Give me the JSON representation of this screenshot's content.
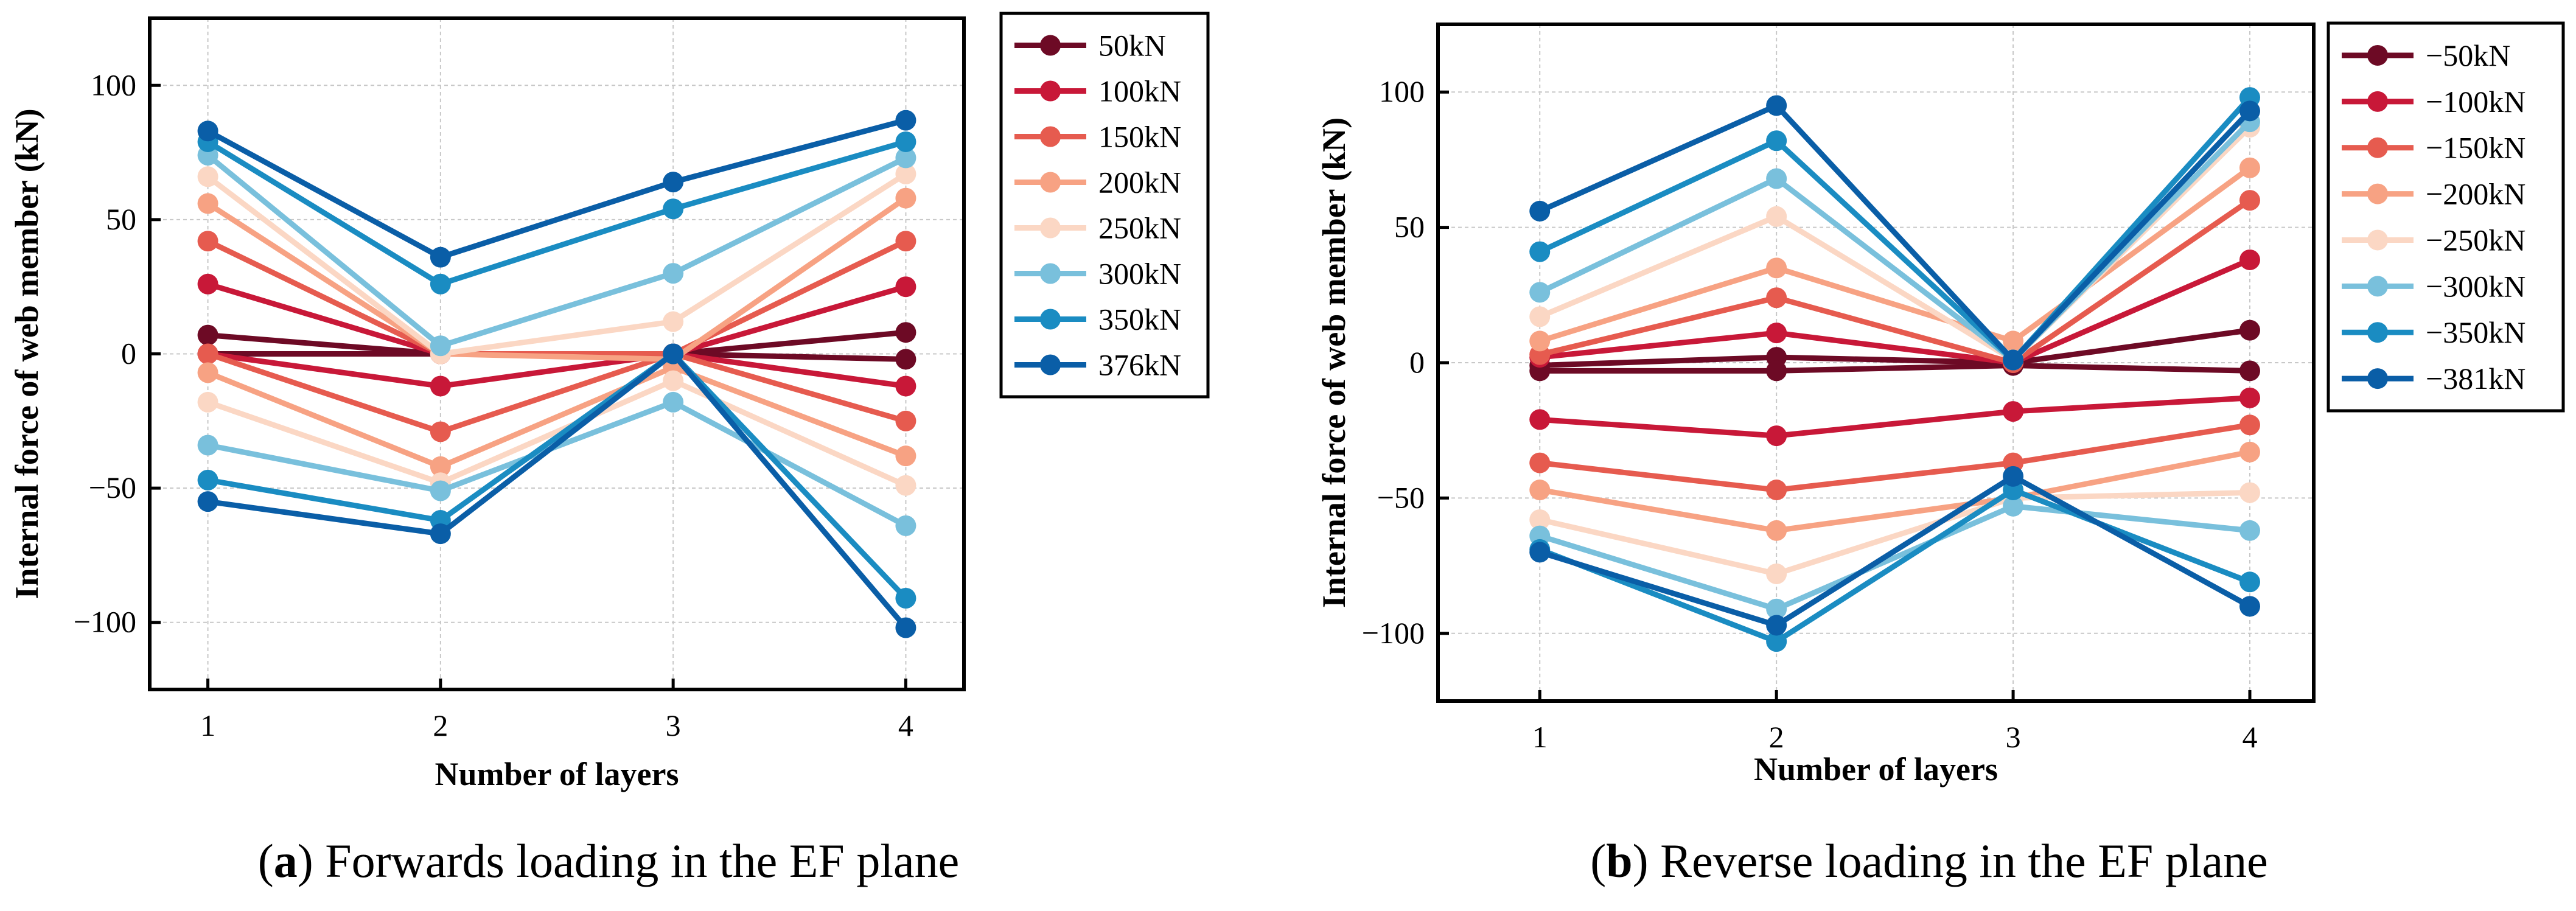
{
  "panels": [
    {
      "caption": {
        "letter": "a",
        "text": "Forwards loading in the EF plane"
      },
      "chart_data": {
        "type": "line",
        "title": "",
        "xlabel": "Number of layers",
        "ylabel": "Internal force of web member (kN)",
        "x": [
          1,
          2,
          3,
          4
        ],
        "xlim": [
          0.75,
          4.25
        ],
        "ylim": [
          -125,
          125
        ],
        "xticks": [
          1,
          2,
          3,
          4
        ],
        "yticks": [
          -100,
          -50,
          0,
          50,
          100
        ],
        "grid": true,
        "legend_position": "right-outside",
        "series": [
          {
            "name": "50kN",
            "color": "#6d0a25",
            "values": [
              7,
              0,
              0,
              8
            ],
            "values_2": [
              0,
              0,
              0,
              -2
            ]
          },
          {
            "name": "100kN",
            "color": "#c81838",
            "values": [
              26,
              0,
              0,
              25
            ],
            "values_2": [
              0,
              -12,
              0,
              -12
            ]
          },
          {
            "name": "150kN",
            "color": "#e65b4f",
            "values": [
              42,
              0,
              0,
              42
            ],
            "values_2": [
              0,
              -29,
              0,
              -25
            ]
          },
          {
            "name": "200kN",
            "color": "#f7a283",
            "values": [
              56,
              0,
              -2,
              58
            ],
            "values_2": [
              -7,
              -42,
              -5,
              -38
            ]
          },
          {
            "name": "250kN",
            "color": "#fbd7c4",
            "values": [
              66,
              0,
              12,
              67
            ],
            "values_2": [
              -18,
              -48,
              -10,
              -49
            ]
          },
          {
            "name": "300kN",
            "color": "#79c0dc",
            "values": [
              74,
              3,
              30,
              73
            ],
            "values_2": [
              -34,
              -51,
              -18,
              -64
            ]
          },
          {
            "name": "350kN",
            "color": "#1a8cc2",
            "values": [
              79,
              26,
              54,
              79
            ],
            "values_2": [
              -47,
              -62,
              0,
              -91
            ]
          },
          {
            "name": "376kN",
            "color": "#0a5ea7",
            "values": [
              83,
              36,
              64,
              87
            ],
            "values_2": [
              -55,
              -67,
              0,
              -102
            ]
          }
        ]
      }
    },
    {
      "caption": {
        "letter": "b",
        "text": "Reverse loading in the EF plane"
      },
      "chart_data": {
        "type": "line",
        "title": "",
        "xlabel": "Number of layers",
        "ylabel": "Internal force of web member (kN)",
        "x": [
          1,
          2,
          3,
          4
        ],
        "xlim": [
          0.57,
          4.27
        ],
        "ylim": [
          -125,
          125
        ],
        "xticks": [
          1,
          2,
          3,
          4
        ],
        "yticks": [
          -100,
          -50,
          0,
          50,
          100
        ],
        "grid": true,
        "legend_position": "right-outside",
        "series": [
          {
            "name": "−50kN",
            "color": "#6d0a25",
            "values": [
              -1,
              2,
              0,
              12
            ],
            "values_2": [
              -3,
              -3,
              -1,
              -3
            ]
          },
          {
            "name": "−100kN",
            "color": "#c81838",
            "values": [
              2,
              11,
              0,
              38
            ],
            "values_2": [
              -21,
              -27,
              -18,
              -13
            ]
          },
          {
            "name": "−150kN",
            "color": "#e65b4f",
            "values": [
              3,
              24,
              0,
              60
            ],
            "values_2": [
              -37,
              -47,
              -37,
              -23
            ]
          },
          {
            "name": "−200kN",
            "color": "#f7a283",
            "values": [
              8,
              35,
              8,
              72
            ],
            "values_2": [
              -47,
              -62,
              -50,
              -33
            ]
          },
          {
            "name": "−250kN",
            "color": "#fbd7c4",
            "values": [
              17,
              54,
              1,
              87
            ],
            "values_2": [
              -58,
              -78,
              -50,
              -48
            ]
          },
          {
            "name": "−300kN",
            "color": "#79c0dc",
            "values": [
              26,
              68,
              1,
              89
            ],
            "values_2": [
              -64,
              -91,
              -53,
              -62
            ]
          },
          {
            "name": "−350kN",
            "color": "#1a8cc2",
            "values": [
              41,
              82,
              1,
              98
            ],
            "values_2": [
              -69,
              -103,
              -47,
              -81
            ]
          },
          {
            "name": "−381kN",
            "color": "#0a5ea7",
            "values": [
              56,
              95,
              1,
              93
            ],
            "values_2": [
              -70,
              -97,
              -42,
              -90
            ]
          }
        ]
      }
    }
  ]
}
